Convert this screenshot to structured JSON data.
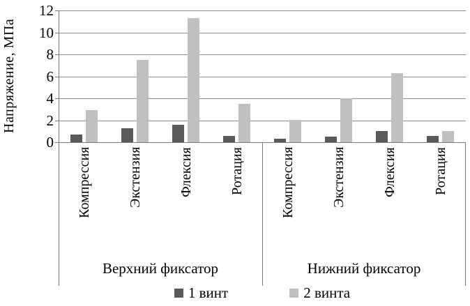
{
  "figure": {
    "background": "#ffffff",
    "axis_color": "#7a7a7a",
    "gridline_color": "#8e8e8e",
    "text_color": "#000000"
  },
  "chart_data": {
    "type": "bar",
    "title": "",
    "xlabel": "",
    "ylabel": "Напряжение, МПа",
    "ylim": [
      0,
      12
    ],
    "ytick_step": 2,
    "ytick_labels": [
      "0",
      "2",
      "4",
      "6",
      "8",
      "10",
      "12"
    ],
    "grid": "horizontal",
    "legend_position": "bottom",
    "group_axis": [
      {
        "label": "Верхний фиксатор",
        "categories": [
          "Компрессия",
          "Экстензия",
          "Флексия",
          "Ротация"
        ]
      },
      {
        "label": "Нижний фиксатор",
        "categories": [
          "Компрессия",
          "Экстензия",
          "Флексия",
          "Ротация"
        ]
      }
    ],
    "series": [
      {
        "name": "1 винт",
        "color": "#5a5a5a",
        "values": [
          0.7,
          1.3,
          1.6,
          0.6,
          0.3,
          0.5,
          1.0,
          0.6
        ]
      },
      {
        "name": "2 винта",
        "color": "#c0c0c0",
        "values": [
          2.9,
          7.5,
          11.3,
          3.5,
          2.0,
          4.0,
          6.3,
          1.0
        ]
      }
    ]
  }
}
